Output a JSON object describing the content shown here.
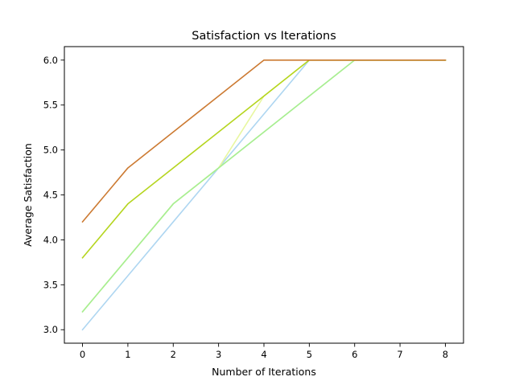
{
  "chart_data": {
    "type": "line",
    "title": "Satisfaction vs Iterations",
    "xlabel": "Number of Iterations",
    "ylabel": "Average Satisfaction",
    "x": [
      0,
      1,
      2,
      3,
      4,
      5,
      6,
      7,
      8
    ],
    "xlim": [
      -0.4,
      8.4
    ],
    "ylim": [
      2.85,
      6.15
    ],
    "xticks": [
      0,
      1,
      2,
      3,
      4,
      5,
      6,
      7,
      8
    ],
    "xtick_labels": [
      "0",
      "1",
      "2",
      "3",
      "4",
      "5",
      "6",
      "7",
      "8"
    ],
    "yticks": [
      3.0,
      3.5,
      4.0,
      4.5,
      5.0,
      5.5,
      6.0
    ],
    "ytick_labels": [
      "3.0",
      "3.5",
      "4.0",
      "4.5",
      "5.0",
      "5.5",
      "6.0"
    ],
    "grid": false,
    "legend": false,
    "series": [
      {
        "color": "#aed6f1",
        "values": [
          3.0,
          3.6,
          4.2,
          4.8,
          5.4,
          6.0,
          6.0,
          6.0,
          6.0
        ]
      },
      {
        "color": "#e8f7a0",
        "values": [
          3.2,
          3.8,
          4.4,
          4.8,
          5.6,
          6.0,
          6.0,
          6.0,
          6.0
        ]
      },
      {
        "color": "#c5f5c5",
        "values": [
          3.2,
          3.8,
          4.4,
          4.8,
          5.2,
          5.6,
          6.0,
          6.0,
          6.0
        ]
      },
      {
        "color": "#a8ee90",
        "values": [
          3.2,
          3.8,
          4.4,
          4.8,
          5.2,
          5.6,
          6.0,
          6.0,
          6.0
        ]
      },
      {
        "color": "#b5d51f",
        "values": [
          3.8,
          4.4,
          4.8,
          5.2,
          5.6,
          6.0,
          6.0,
          6.0,
          6.0
        ]
      },
      {
        "color": "#cc7a32",
        "values": [
          4.2,
          4.8,
          5.2,
          5.6,
          6.0,
          6.0,
          6.0,
          6.0,
          6.0
        ]
      }
    ]
  }
}
